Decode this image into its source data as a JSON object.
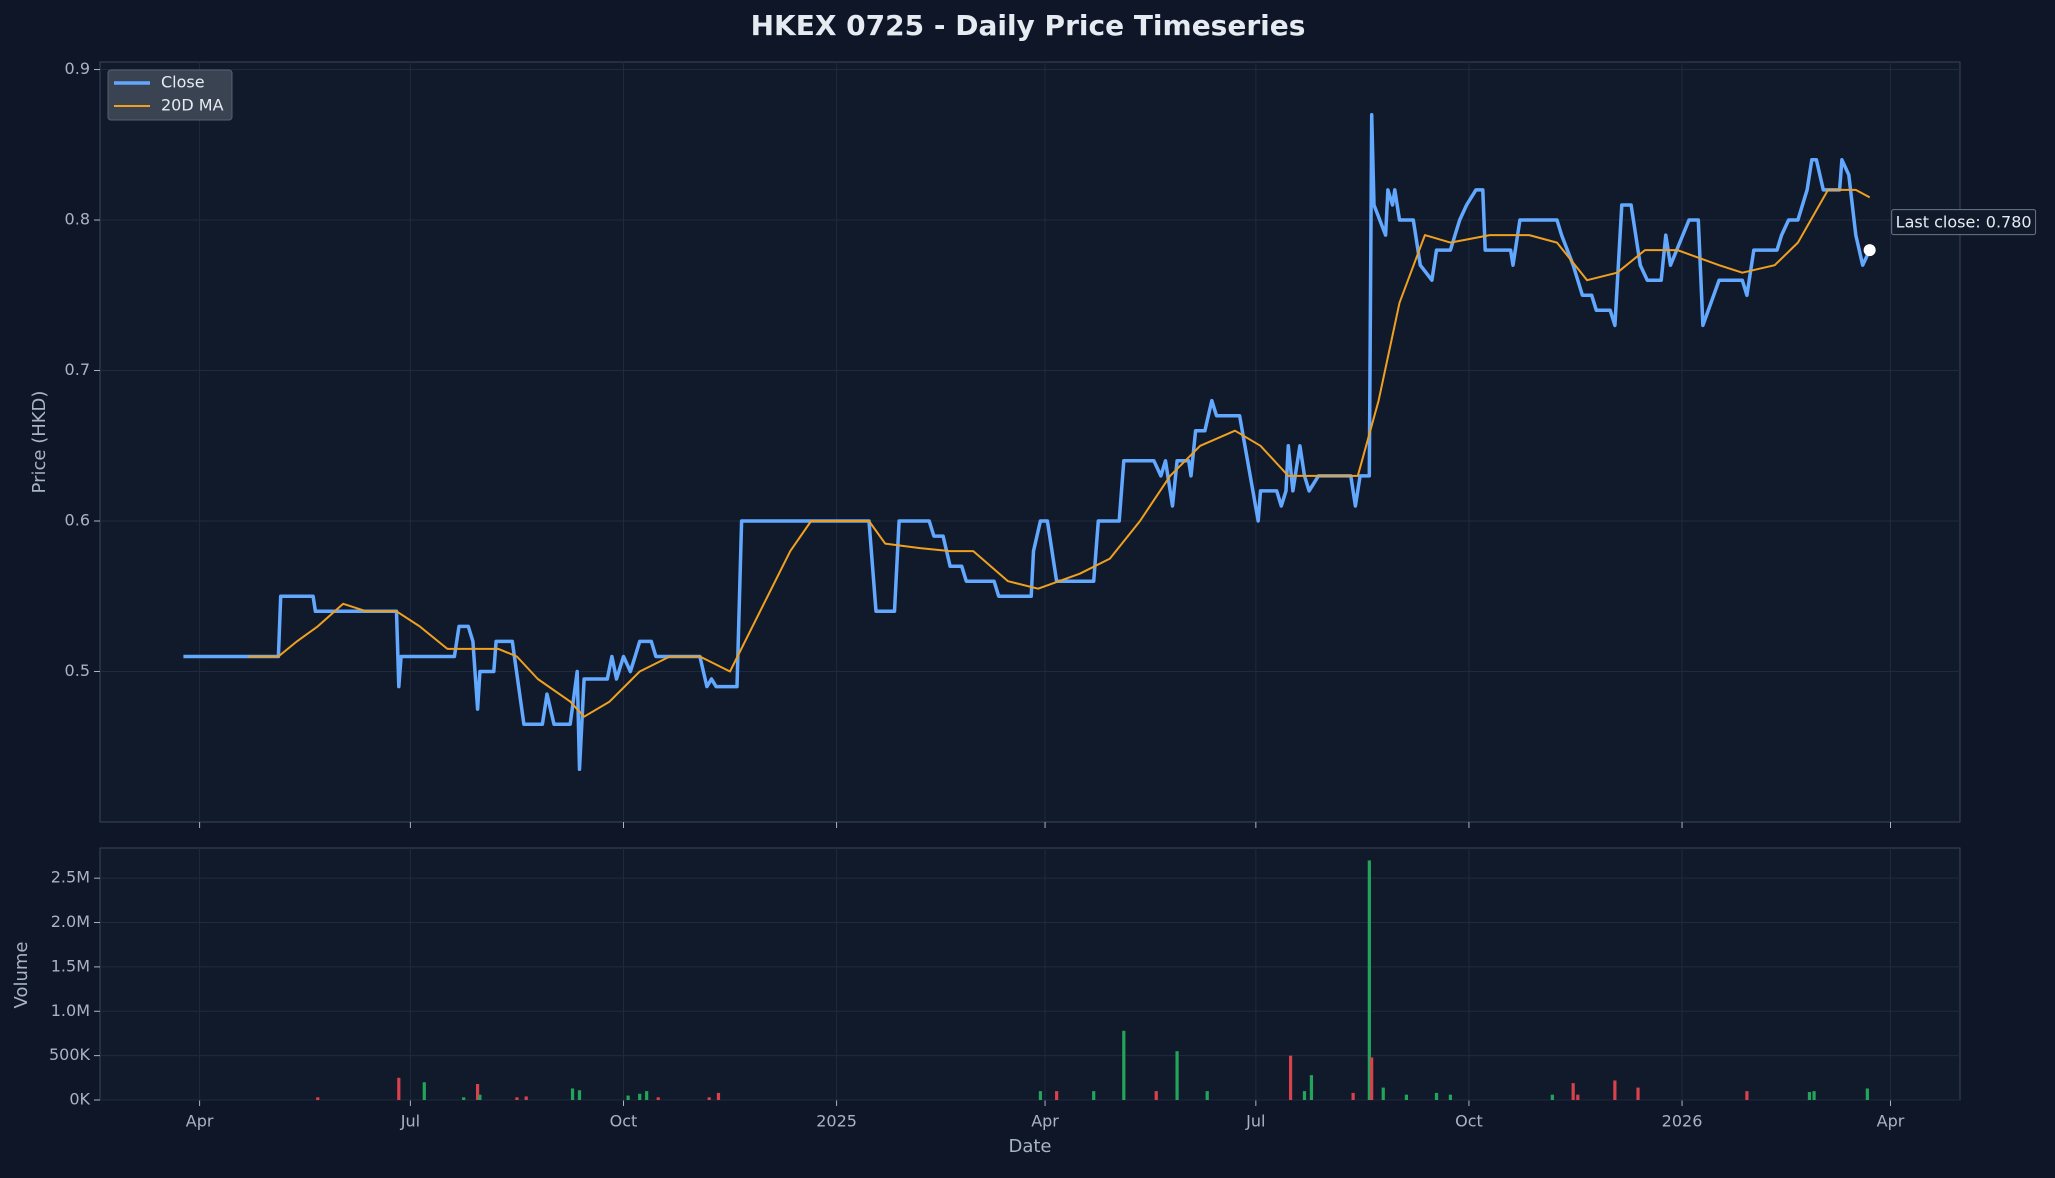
{
  "chart_data": [
    {
      "type": "line",
      "title": "HKEX 0725 - Daily Price Timeseries",
      "ylabel": "Price (HKD)",
      "ylim": [
        0.4,
        0.905
      ],
      "yticks": [
        0.5,
        0.6,
        0.7,
        0.8,
        0.9
      ],
      "grid": true,
      "legend": "upper left",
      "annotation": "Last close: 0.780",
      "series": [
        {
          "name": "Close",
          "color": "#62a8ff",
          "x": [
            "2024-03-25",
            "2024-05-05",
            "2024-05-06",
            "2024-05-20",
            "2024-05-21",
            "2024-06-25",
            "2024-06-26",
            "2024-06-27",
            "2024-07-20",
            "2024-07-22",
            "2024-07-26",
            "2024-07-28",
            "2024-07-30",
            "2024-07-31",
            "2024-08-06",
            "2024-08-07",
            "2024-08-14",
            "2024-08-19",
            "2024-08-27",
            "2024-08-29",
            "2024-09-01",
            "2024-09-08",
            "2024-09-11",
            "2024-09-12",
            "2024-09-14",
            "2024-09-24",
            "2024-09-26",
            "2024-09-28",
            "2024-10-01",
            "2024-10-04",
            "2024-10-06",
            "2024-10-08",
            "2024-10-13",
            "2024-10-15",
            "2024-11-03",
            "2024-11-06",
            "2024-11-08",
            "2024-11-10",
            "2024-11-19",
            "2024-11-21",
            "2025-01-15",
            "2025-01-18",
            "2025-01-26",
            "2025-01-28",
            "2025-02-10",
            "2025-02-12",
            "2025-02-16",
            "2025-02-19",
            "2025-02-24",
            "2025-02-26",
            "2025-03-10",
            "2025-03-12",
            "2025-03-26",
            "2025-03-27",
            "2025-03-30",
            "2025-04-02",
            "2025-04-06",
            "2025-04-22",
            "2025-04-24",
            "2025-05-03",
            "2025-05-05",
            "2025-05-18",
            "2025-05-21",
            "2025-05-23",
            "2025-05-26",
            "2025-05-28",
            "2025-06-02",
            "2025-06-03",
            "2025-06-05",
            "2025-06-09",
            "2025-06-12",
            "2025-06-14",
            "2025-06-24",
            "2025-07-02",
            "2025-07-03",
            "2025-07-10",
            "2025-07-12",
            "2025-07-14",
            "2025-07-15",
            "2025-07-17",
            "2025-07-20",
            "2025-07-22",
            "2025-07-24",
            "2025-07-28",
            "2025-08-11",
            "2025-08-13",
            "2025-08-15",
            "2025-08-19",
            "2025-08-20",
            "2025-08-21",
            "2025-08-26",
            "2025-08-27",
            "2025-08-29",
            "2025-08-30",
            "2025-09-01",
            "2025-09-07",
            "2025-09-10",
            "2025-09-15",
            "2025-09-17",
            "2025-09-23",
            "2025-09-25",
            "2025-09-27",
            "2025-09-30",
            "2025-10-04",
            "2025-10-07",
            "2025-10-08",
            "2025-10-19",
            "2025-10-20",
            "2025-10-23",
            "2025-11-08",
            "2025-11-10",
            "2025-11-15",
            "2025-11-19",
            "2025-11-23",
            "2025-11-25",
            "2025-12-01",
            "2025-12-03",
            "2025-12-06",
            "2025-12-10",
            "2025-12-14",
            "2025-12-17",
            "2025-12-23",
            "2025-12-25",
            "2025-12-27",
            "2026-01-04",
            "2026-01-08",
            "2026-01-10",
            "2026-01-17",
            "2026-01-27",
            "2026-01-29",
            "2026-02-01",
            "2026-02-11",
            "2026-02-13",
            "2026-02-16",
            "2026-02-20",
            "2026-02-24",
            "2026-02-26",
            "2026-02-28",
            "2026-03-03",
            "2026-03-10",
            "2026-03-11",
            "2026-03-14",
            "2026-03-17",
            "2026-03-20",
            "2026-03-23"
          ],
          "values": [
            0.51,
            0.51,
            0.55,
            0.55,
            0.54,
            0.54,
            0.49,
            0.51,
            0.51,
            0.53,
            0.53,
            0.52,
            0.475,
            0.5,
            0.5,
            0.52,
            0.52,
            0.465,
            0.465,
            0.485,
            0.465,
            0.465,
            0.5,
            0.435,
            0.495,
            0.495,
            0.51,
            0.495,
            0.51,
            0.5,
            0.51,
            0.52,
            0.52,
            0.51,
            0.51,
            0.49,
            0.495,
            0.49,
            0.49,
            0.6,
            0.6,
            0.54,
            0.54,
            0.6,
            0.6,
            0.59,
            0.59,
            0.57,
            0.57,
            0.56,
            0.56,
            0.55,
            0.55,
            0.58,
            0.6,
            0.6,
            0.56,
            0.56,
            0.6,
            0.6,
            0.64,
            0.64,
            0.63,
            0.64,
            0.61,
            0.64,
            0.64,
            0.63,
            0.66,
            0.66,
            0.68,
            0.67,
            0.67,
            0.6,
            0.62,
            0.62,
            0.61,
            0.62,
            0.65,
            0.62,
            0.65,
            0.63,
            0.62,
            0.63,
            0.63,
            0.61,
            0.63,
            0.63,
            0.87,
            0.81,
            0.79,
            0.82,
            0.81,
            0.82,
            0.8,
            0.8,
            0.77,
            0.76,
            0.78,
            0.78,
            0.79,
            0.8,
            0.81,
            0.82,
            0.82,
            0.78,
            0.78,
            0.77,
            0.8,
            0.8,
            0.79,
            0.77,
            0.75,
            0.75,
            0.74,
            0.74,
            0.73,
            0.81,
            0.81,
            0.77,
            0.76,
            0.76,
            0.79,
            0.77,
            0.8,
            0.8,
            0.73,
            0.76,
            0.76,
            0.75,
            0.78,
            0.78,
            0.79,
            0.8,
            0.8,
            0.82,
            0.84,
            0.84,
            0.82,
            0.82,
            0.84,
            0.83,
            0.79,
            0.77,
            0.78
          ]
        },
        {
          "name": "20D MA",
          "color": "#f0a020",
          "x": [
            "2024-04-22",
            "2024-05-05",
            "2024-05-13",
            "2024-05-22",
            "2024-06-02",
            "2024-06-12",
            "2024-06-25",
            "2024-07-05",
            "2024-07-17",
            "2024-07-26",
            "2024-08-08",
            "2024-08-16",
            "2024-08-25",
            "2024-09-08",
            "2024-09-14",
            "2024-09-25",
            "2024-10-08",
            "2024-10-21",
            "2024-11-03",
            "2024-11-16",
            "2024-11-29",
            "2024-12-12",
            "2024-12-21",
            "2025-01-01",
            "2025-01-15",
            "2025-01-22",
            "2025-02-06",
            "2025-02-19",
            "2025-03-01",
            "2025-03-16",
            "2025-03-29",
            "2025-04-16",
            "2025-04-29",
            "2025-05-12",
            "2025-05-25",
            "2025-06-07",
            "2025-06-22",
            "2025-07-03",
            "2025-07-15",
            "2025-07-28",
            "2025-08-14",
            "2025-08-23",
            "2025-09-01",
            "2025-09-12",
            "2025-09-23",
            "2025-10-10",
            "2025-10-27",
            "2025-11-08",
            "2025-11-21",
            "2025-12-04",
            "2025-12-16",
            "2025-12-30",
            "2026-01-17",
            "2026-01-27",
            "2026-02-10",
            "2026-02-20",
            "2026-03-05",
            "2026-03-17",
            "2026-03-23"
          ],
          "values": [
            0.51,
            0.51,
            0.52,
            0.53,
            0.545,
            0.54,
            0.54,
            0.53,
            0.515,
            0.515,
            0.515,
            0.51,
            0.495,
            0.48,
            0.47,
            0.48,
            0.5,
            0.51,
            0.51,
            0.5,
            0.54,
            0.58,
            0.6,
            0.6,
            0.6,
            0.585,
            0.582,
            0.58,
            0.58,
            0.56,
            0.555,
            0.565,
            0.575,
            0.6,
            0.63,
            0.65,
            0.66,
            0.65,
            0.63,
            0.63,
            0.63,
            0.68,
            0.745,
            0.79,
            0.785,
            0.79,
            0.79,
            0.785,
            0.76,
            0.765,
            0.78,
            0.78,
            0.77,
            0.765,
            0.77,
            0.785,
            0.82,
            0.82,
            0.815
          ]
        }
      ]
    },
    {
      "type": "bar",
      "xlabel": "Date",
      "ylabel": "Volume",
      "xlim": [
        "2024-02-18",
        "2026-05-01"
      ],
      "xticks": [
        {
          "value": "2024-04-01",
          "label": "Apr"
        },
        {
          "value": "2024-07-01",
          "label": "Jul"
        },
        {
          "value": "2024-10-01",
          "label": "Oct"
        },
        {
          "value": "2025-01-01",
          "label": "2025"
        },
        {
          "value": "2025-04-01",
          "label": "Apr"
        },
        {
          "value": "2025-07-01",
          "label": "Jul"
        },
        {
          "value": "2025-10-01",
          "label": "Oct"
        },
        {
          "value": "2026-01-01",
          "label": "2026"
        },
        {
          "value": "2026-04-01",
          "label": "Apr"
        }
      ],
      "ylim": [
        0,
        2840000
      ],
      "yticks": [
        {
          "value": 0,
          "label": "0K"
        },
        {
          "value": 500000,
          "label": "500K"
        },
        {
          "value": 1000000,
          "label": "1.0M"
        },
        {
          "value": 1500000,
          "label": "1.5M"
        },
        {
          "value": 2000000,
          "label": "2.0M"
        },
        {
          "value": 2500000,
          "label": "2.5M"
        }
      ],
      "grid": true,
      "x": [
        "2024-05-22",
        "2024-06-26",
        "2024-07-07",
        "2024-07-24",
        "2024-07-30",
        "2024-07-31",
        "2024-08-16",
        "2024-08-20",
        "2024-09-09",
        "2024-09-12",
        "2024-10-03",
        "2024-10-08",
        "2024-10-11",
        "2024-10-16",
        "2024-11-07",
        "2024-11-11",
        "2025-03-30",
        "2025-04-06",
        "2025-04-22",
        "2025-05-05",
        "2025-05-19",
        "2025-05-28",
        "2025-06-10",
        "2025-07-16",
        "2025-07-22",
        "2025-07-25",
        "2025-08-12",
        "2025-08-19",
        "2025-08-20",
        "2025-08-25",
        "2025-09-04",
        "2025-09-17",
        "2025-09-23",
        "2025-11-06",
        "2025-11-15",
        "2025-11-17",
        "2025-12-03",
        "2025-12-13",
        "2026-01-29",
        "2026-02-25",
        "2026-02-27",
        "2026-03-22"
      ],
      "values": [
        30000,
        250000,
        200000,
        30000,
        180000,
        60000,
        30000,
        40000,
        130000,
        110000,
        50000,
        70000,
        100000,
        30000,
        30000,
        80000,
        100000,
        100000,
        100000,
        780000,
        100000,
        550000,
        100000,
        500000,
        100000,
        280000,
        80000,
        2700000,
        480000,
        140000,
        60000,
        80000,
        60000,
        60000,
        190000,
        60000,
        220000,
        140000,
        100000,
        90000,
        100000,
        130000
      ],
      "colors": [
        "#d9414c",
        "#d9414c",
        "#22a55a",
        "#22a55a",
        "#d9414c",
        "#22a55a",
        "#d9414c",
        "#d9414c",
        "#22a55a",
        "#22a55a",
        "#22a55a",
        "#22a55a",
        "#22a55a",
        "#d9414c",
        "#d9414c",
        "#d9414c",
        "#22a55a",
        "#d9414c",
        "#22a55a",
        "#22a55a",
        "#d9414c",
        "#22a55a",
        "#22a55a",
        "#d9414c",
        "#22a55a",
        "#22a55a",
        "#d9414c",
        "#22a55a",
        "#d9414c",
        "#22a55a",
        "#22a55a",
        "#22a55a",
        "#22a55a",
        "#22a55a",
        "#d9414c",
        "#d9414c",
        "#d9414c",
        "#d9414c",
        "#d9414c",
        "#22a55a",
        "#22a55a",
        "#22a55a"
      ]
    }
  ]
}
